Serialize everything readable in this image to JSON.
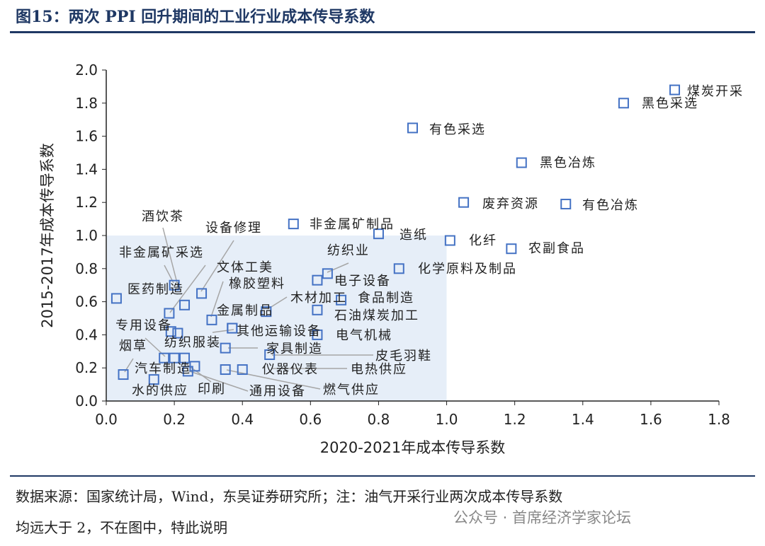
{
  "title": "图15：两次 PPI 回升期间的工业行业成本传导系数",
  "source_line1": "数据来源：国家统计局，Wind，东吴证券研究所；注：油气开采行业两次成本传导系数",
  "source_line2": "均远大于 2，不在图中，特此说明",
  "watermark": "公众号 · 首席经济学家论坛",
  "chart_data": {
    "type": "scatter",
    "xlabel": "2020-2021年成本传导系数",
    "ylabel": "2015-2017年成本传导系数",
    "xlim": [
      0,
      1.8
    ],
    "ylim": [
      0,
      2.0
    ],
    "xticks": [
      "0.0",
      "0.2",
      "0.4",
      "0.6",
      "0.8",
      "1.0",
      "1.2",
      "1.4",
      "1.6",
      "1.8"
    ],
    "yticks": [
      "0.0",
      "0.2",
      "0.4",
      "0.6",
      "0.8",
      "1.0",
      "1.2",
      "1.4",
      "1.6",
      "1.8",
      "2.0"
    ],
    "shaded_region": {
      "x": [
        0,
        1.0
      ],
      "y": [
        0,
        1.0
      ]
    },
    "marker_color": "#4472c4",
    "shade_color": "#e6eef8",
    "points": [
      {
        "name": "煤炭开采",
        "x": 1.67,
        "y": 1.88
      },
      {
        "name": "黑色采选",
        "x": 1.52,
        "y": 1.8
      },
      {
        "name": "有色采选",
        "x": 0.9,
        "y": 1.65
      },
      {
        "name": "黑色冶炼",
        "x": 1.22,
        "y": 1.44
      },
      {
        "name": "废弃资源",
        "x": 1.05,
        "y": 1.2
      },
      {
        "name": "有色冶炼",
        "x": 1.35,
        "y": 1.19
      },
      {
        "name": "非金属矿制品",
        "x": 0.55,
        "y": 1.07
      },
      {
        "name": "造纸",
        "x": 0.8,
        "y": 1.01
      },
      {
        "name": "化纤",
        "x": 1.01,
        "y": 0.97
      },
      {
        "name": "农副食品",
        "x": 1.19,
        "y": 0.92
      },
      {
        "name": "化学原料及制品",
        "x": 0.86,
        "y": 0.8
      },
      {
        "name": "纺织业",
        "x": 0.65,
        "y": 0.77
      },
      {
        "name": "电子设备",
        "x": 0.62,
        "y": 0.73
      },
      {
        "name": "食品制造",
        "x": 0.69,
        "y": 0.61
      },
      {
        "name": "石油煤炭加工",
        "x": 0.62,
        "y": 0.55
      },
      {
        "name": "木材加工",
        "x": 0.47,
        "y": 0.54
      },
      {
        "name": "医药制造",
        "x": 0.03,
        "y": 0.62
      },
      {
        "name": "非金属矿采选",
        "x": 0.2,
        "y": 0.7
      },
      {
        "name": "酒饮茶",
        "x": 0.23,
        "y": 0.58
      },
      {
        "name": "设备修理",
        "x": 0.28,
        "y": 0.65
      },
      {
        "name": "文体工美",
        "x": 0.185,
        "y": 0.53
      },
      {
        "name": "橡胶塑料",
        "x": 0.31,
        "y": 0.49
      },
      {
        "name": "金属制品",
        "x": 0.37,
        "y": 0.44
      },
      {
        "name": "其他运输设备",
        "x": 0.37,
        "y": 0.44
      },
      {
        "name": "专用设备",
        "x": 0.19,
        "y": 0.42
      },
      {
        "name": "纺织服装",
        "x": 0.21,
        "y": 0.41
      },
      {
        "name": "电气机械",
        "x": 0.62,
        "y": 0.4
      },
      {
        "name": "家具制造",
        "x": 0.35,
        "y": 0.32
      },
      {
        "name": "皮毛羽鞋",
        "x": 0.48,
        "y": 0.28
      },
      {
        "name": "烟草",
        "x": 0.05,
        "y": 0.16
      },
      {
        "name": "汽车制造",
        "x": 0.17,
        "y": 0.26
      },
      {
        "name": "印刷",
        "x": 0.2,
        "y": 0.26
      },
      {
        "name": "通用设备",
        "x": 0.23,
        "y": 0.26
      },
      {
        "name": "燃气供应",
        "x": 0.26,
        "y": 0.21
      },
      {
        "name": "汽车制造2",
        "x": 0.24,
        "y": 0.18
      },
      {
        "name": "水的供应",
        "x": 0.14,
        "y": 0.13
      },
      {
        "name": "仪器仪表",
        "x": 0.35,
        "y": 0.19
      },
      {
        "name": "电热供应",
        "x": 0.4,
        "y": 0.19
      }
    ],
    "labels": [
      "煤炭开采",
      "黑色采选",
      "有色采选",
      "黑色冶炼",
      "废弃资源",
      "有色冶炼",
      "非金属矿制品",
      "造纸",
      "化纤",
      "农副食品",
      "化学原料及制品",
      "纺织业",
      "电子设备",
      "食品制造",
      "石油煤炭加工",
      "木材加工",
      "金属制品",
      "橡胶塑料",
      "文体工美",
      "设备修理",
      "酒饮茶",
      "非金属矿采选",
      "医药制造",
      "专用设备",
      "纺织服装",
      "其他运输设备",
      "电气机械",
      "家具制造",
      "皮毛羽鞋",
      "烟草",
      "汽车制造",
      "仪器仪表",
      "电热供应",
      "水的供应",
      "印刷",
      "通用设备",
      "燃气供应"
    ]
  }
}
